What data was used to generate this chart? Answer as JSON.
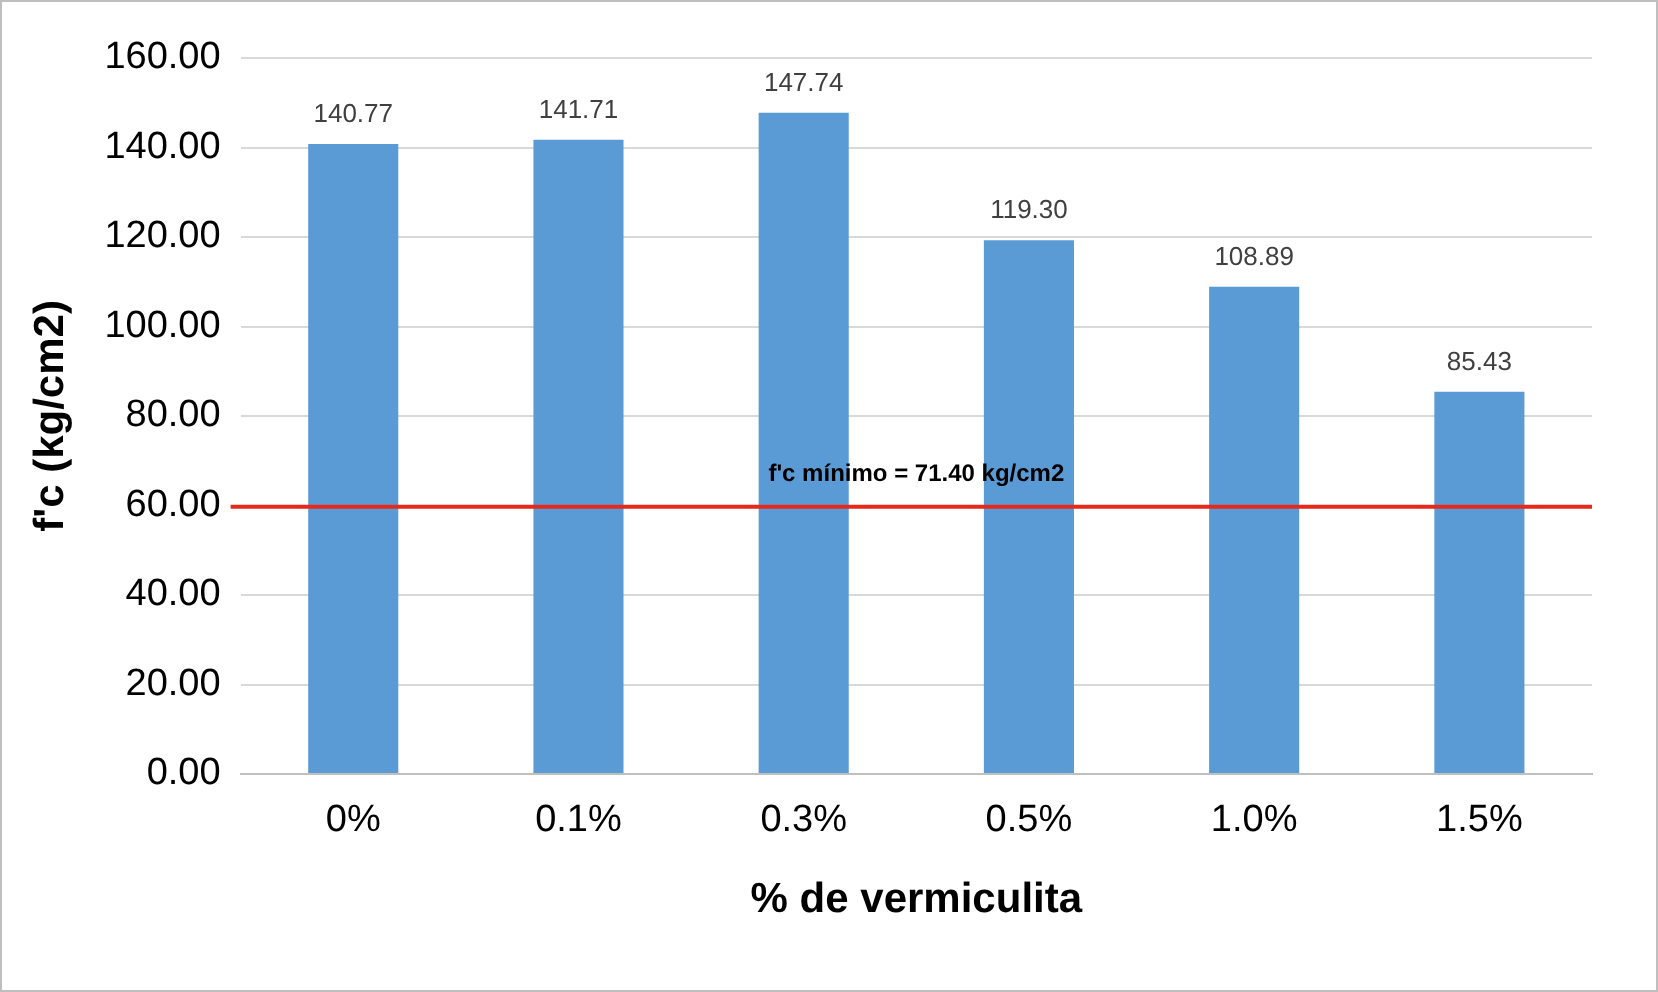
{
  "chart_data": {
    "type": "bar",
    "xlabel": "% de vermiculita",
    "ylabel": "f'c (kg/cm2)",
    "categories": [
      "0%",
      "0.1%",
      "0.3%",
      "0.5%",
      "1.0%",
      "1.5%"
    ],
    "values": [
      140.77,
      141.71,
      147.74,
      119.3,
      108.89,
      85.43
    ],
    "color": "#5b9bd5",
    "value_labels": [
      "140.77",
      "141.71",
      "147.74",
      "119.30",
      "108.89",
      "85.43"
    ],
    "ylim": [
      0,
      160
    ],
    "yticks": [
      {
        "value": 0,
        "label": "0.00"
      },
      {
        "value": 20,
        "label": "20.00"
      },
      {
        "value": 40,
        "label": "40.00"
      },
      {
        "value": 60,
        "label": "60.00"
      },
      {
        "value": 80,
        "label": "80.00"
      },
      {
        "value": 100,
        "label": "100.00"
      },
      {
        "value": 120,
        "label": "120.00"
      },
      {
        "value": 140,
        "label": "140.00"
      },
      {
        "value": 160,
        "label": "160.00"
      }
    ],
    "grid": "y",
    "legend": false,
    "annotations": [
      "f'c mínimo = 71.40 kg/cm2"
    ],
    "ref_lines": [
      {
        "axis": "y",
        "value": 59.7,
        "color": "#e52a1c"
      }
    ]
  }
}
